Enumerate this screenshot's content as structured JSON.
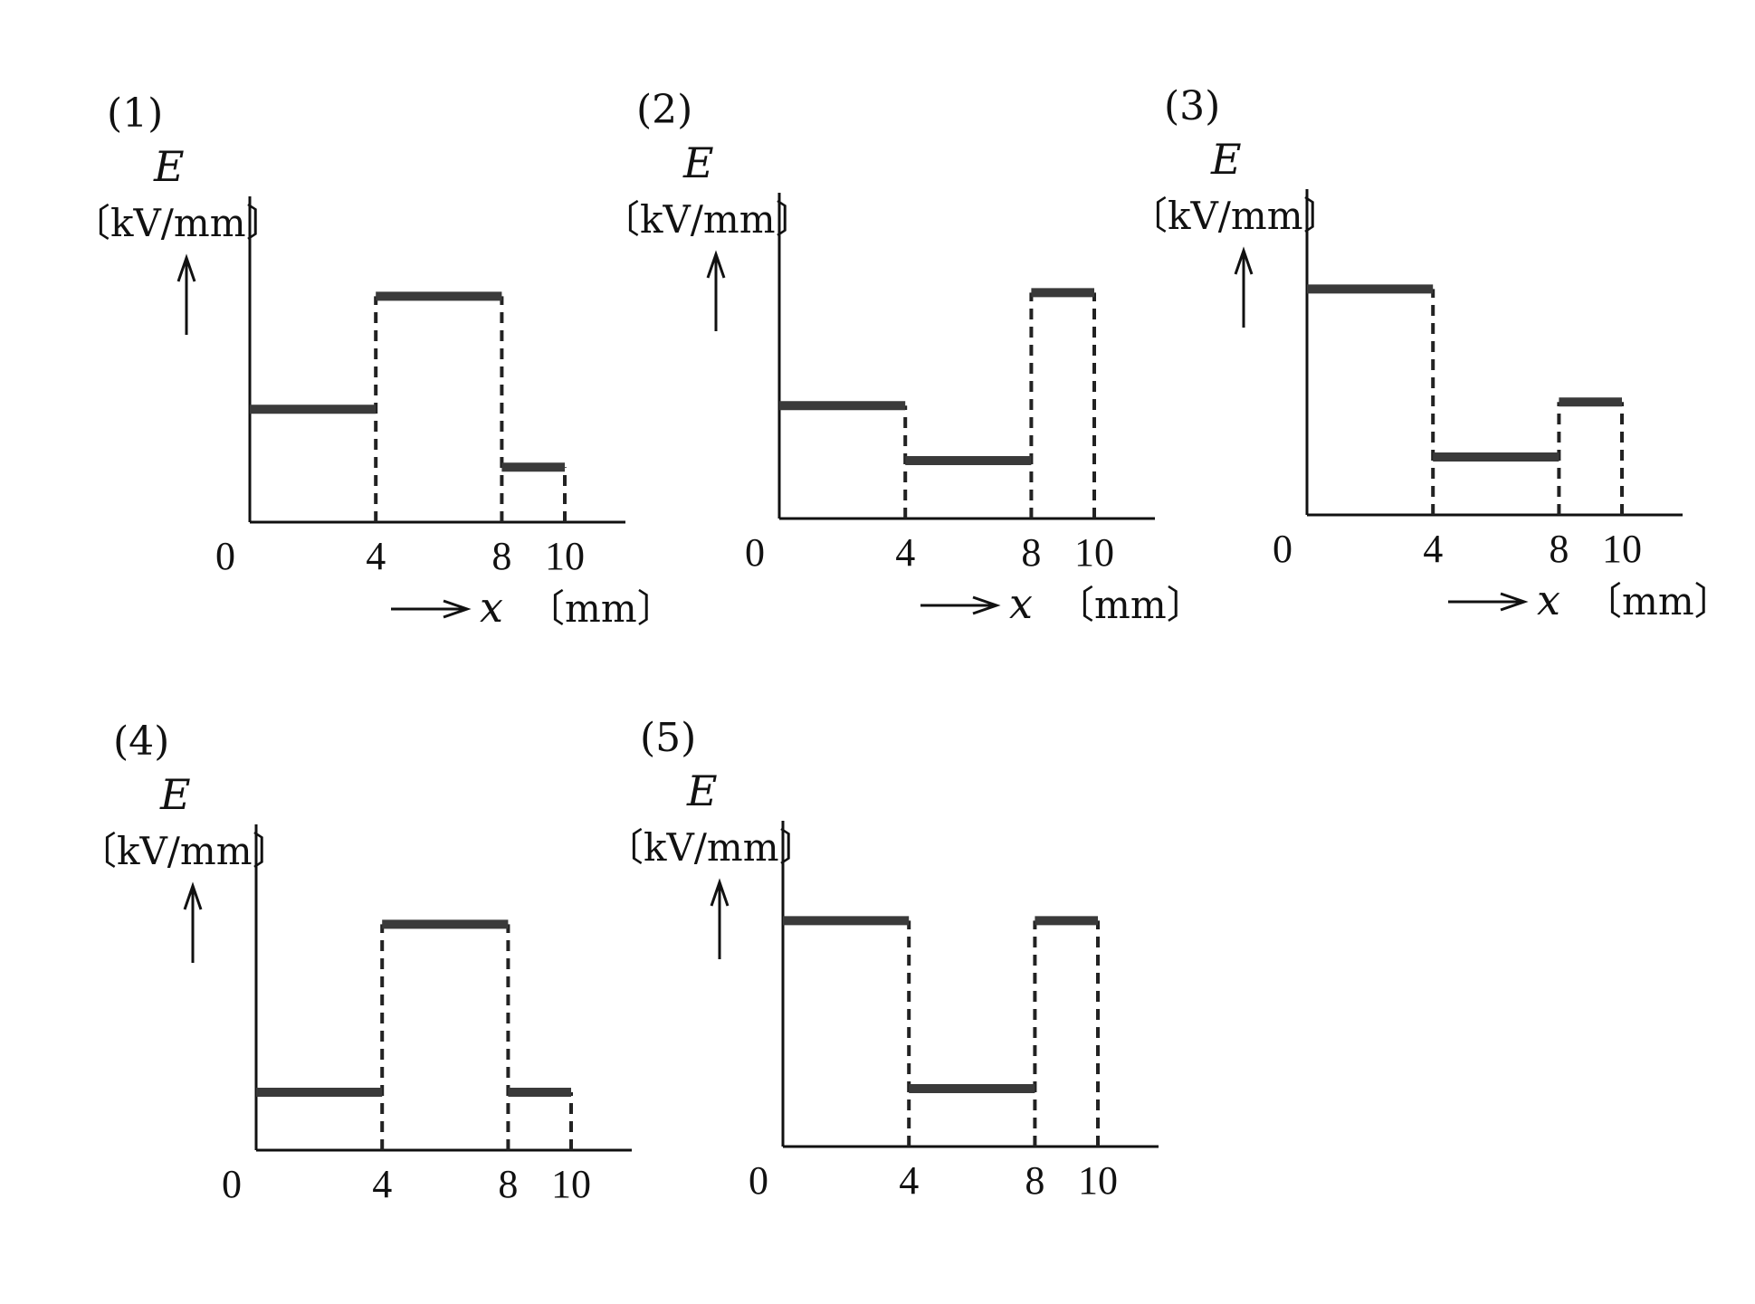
{
  "units": {
    "y_symbol": "E",
    "y_unit": "〔kV/mm〕",
    "x_symbol": "x",
    "x_unit": "〔mm〕"
  },
  "chart_data": [
    {
      "type": "step",
      "panel_label": "(1)",
      "ylabel": "E 〔kV/mm〕",
      "xlabel": "x 〔mm〕",
      "show_xlabel": true,
      "origin_label": "0",
      "x_ticks": [
        "4",
        "8",
        "10"
      ],
      "x_tick_values": [
        4,
        8,
        10
      ],
      "xlim": [
        0,
        12
      ],
      "ylim": [
        0,
        1
      ],
      "segments": [
        {
          "x0": 0,
          "x1": 4,
          "y": 0.39
        },
        {
          "x0": 4,
          "x1": 8,
          "y": 0.78
        },
        {
          "x0": 8,
          "x1": 10,
          "y": 0.19
        }
      ]
    },
    {
      "type": "step",
      "panel_label": "(2)",
      "ylabel": "E 〔kV/mm〕",
      "xlabel": "x 〔mm〕",
      "show_xlabel": true,
      "origin_label": "0",
      "x_ticks": [
        "4",
        "8",
        "10"
      ],
      "x_tick_values": [
        4,
        8,
        10
      ],
      "xlim": [
        0,
        12
      ],
      "ylim": [
        0,
        1
      ],
      "segments": [
        {
          "x0": 0,
          "x1": 4,
          "y": 0.39
        },
        {
          "x0": 4,
          "x1": 8,
          "y": 0.2
        },
        {
          "x0": 8,
          "x1": 10,
          "y": 0.78
        }
      ]
    },
    {
      "type": "step",
      "panel_label": "(3)",
      "ylabel": "E 〔kV/mm〕",
      "xlabel": "x 〔mm〕",
      "show_xlabel": true,
      "origin_label": "0",
      "x_ticks": [
        "4",
        "8",
        "10"
      ],
      "x_tick_values": [
        4,
        8,
        10
      ],
      "xlim": [
        0,
        12
      ],
      "ylim": [
        0,
        1
      ],
      "segments": [
        {
          "x0": 0,
          "x1": 4,
          "y": 0.78
        },
        {
          "x0": 4,
          "x1": 8,
          "y": 0.2
        },
        {
          "x0": 8,
          "x1": 10,
          "y": 0.39
        }
      ]
    },
    {
      "type": "step",
      "panel_label": "(4)",
      "ylabel": "E 〔kV/mm〕",
      "xlabel": "",
      "show_xlabel": false,
      "origin_label": "0",
      "x_ticks": [
        "4",
        "8",
        "10"
      ],
      "x_tick_values": [
        4,
        8,
        10
      ],
      "xlim": [
        0,
        12
      ],
      "ylim": [
        0,
        1
      ],
      "segments": [
        {
          "x0": 0,
          "x1": 4,
          "y": 0.2
        },
        {
          "x0": 4,
          "x1": 8,
          "y": 0.78
        },
        {
          "x0": 8,
          "x1": 10,
          "y": 0.2
        }
      ]
    },
    {
      "type": "step",
      "panel_label": "(5)",
      "ylabel": "E 〔kV/mm〕",
      "xlabel": "",
      "show_xlabel": false,
      "origin_label": "0",
      "x_ticks": [
        "4",
        "8",
        "10"
      ],
      "x_tick_values": [
        4,
        8,
        10
      ],
      "xlim": [
        0,
        12
      ],
      "ylim": [
        0,
        1
      ],
      "segments": [
        {
          "x0": 0,
          "x1": 4,
          "y": 0.78
        },
        {
          "x0": 4,
          "x1": 8,
          "y": 0.2
        },
        {
          "x0": 8,
          "x1": 10,
          "y": 0.78
        }
      ]
    }
  ]
}
